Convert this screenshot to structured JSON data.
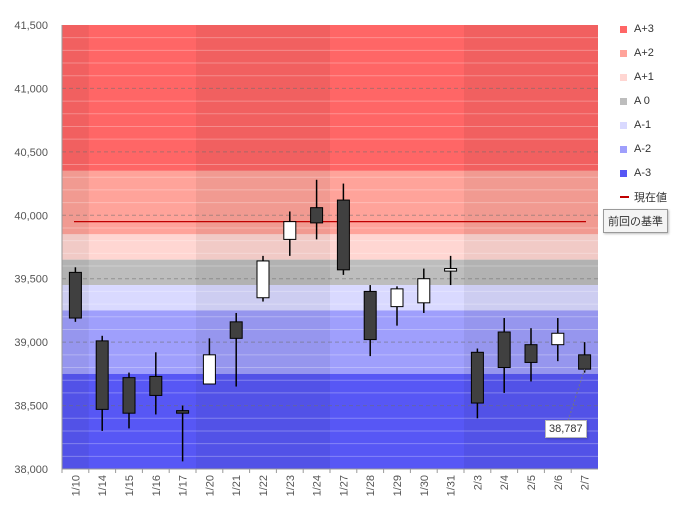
{
  "chart_data": {
    "type": "candlestick",
    "ylim": [
      38000,
      41500
    ],
    "y_ticks": [
      "38,000",
      "38,500",
      "39,000",
      "39,500",
      "40,000",
      "40,500",
      "41,000",
      "41,500"
    ],
    "y_tick_values": [
      38000,
      38500,
      39000,
      39500,
      40000,
      40500,
      41000,
      41500
    ],
    "categories": [
      "1/10",
      "1/14",
      "1/15",
      "1/16",
      "1/17",
      "1/20",
      "1/21",
      "1/22",
      "1/23",
      "1/24",
      "1/27",
      "1/28",
      "1/29",
      "1/30",
      "1/31",
      "2/3",
      "2/4",
      "2/5",
      "2/6",
      "2/7"
    ],
    "candles": [
      {
        "date": "1/10",
        "open": 39550,
        "high": 39590,
        "low": 39160,
        "close": 39190
      },
      {
        "date": "1/14",
        "open": 39010,
        "high": 39050,
        "low": 38300,
        "close": 38470
      },
      {
        "date": "1/15",
        "open": 38720,
        "high": 38760,
        "low": 38320,
        "close": 38440
      },
      {
        "date": "1/16",
        "open": 38730,
        "high": 38920,
        "low": 38430,
        "close": 38580
      },
      {
        "date": "1/17",
        "open": 38460,
        "high": 38500,
        "low": 38060,
        "close": 38440
      },
      {
        "date": "1/20",
        "open": 38670,
        "high": 39030,
        "low": 38670,
        "close": 38900
      },
      {
        "date": "1/21",
        "open": 39160,
        "high": 39230,
        "low": 38650,
        "close": 39030
      },
      {
        "date": "1/22",
        "open": 39350,
        "high": 39680,
        "low": 39320,
        "close": 39640
      },
      {
        "date": "1/23",
        "open": 39810,
        "high": 40030,
        "low": 39680,
        "close": 39950
      },
      {
        "date": "1/24",
        "open": 40060,
        "high": 40280,
        "low": 39810,
        "close": 39940
      },
      {
        "date": "1/27",
        "open": 40120,
        "high": 40250,
        "low": 39530,
        "close": 39570
      },
      {
        "date": "1/28",
        "open": 39400,
        "high": 39450,
        "low": 38890,
        "close": 39020
      },
      {
        "date": "1/29",
        "open": 39280,
        "high": 39440,
        "low": 39130,
        "close": 39420
      },
      {
        "date": "1/30",
        "open": 39310,
        "high": 39580,
        "low": 39230,
        "close": 39500
      },
      {
        "date": "1/31",
        "open": 39560,
        "high": 39680,
        "low": 39450,
        "close": 39580
      },
      {
        "date": "2/3",
        "open": 38920,
        "high": 38950,
        "low": 38400,
        "close": 38520
      },
      {
        "date": "2/4",
        "open": 39080,
        "high": 39190,
        "low": 38600,
        "close": 38800
      },
      {
        "date": "2/5",
        "open": 38980,
        "high": 39110,
        "low": 38690,
        "close": 38840
      },
      {
        "date": "2/6",
        "open": 38980,
        "high": 39190,
        "low": 38850,
        "close": 39070
      },
      {
        "date": "2/7",
        "open": 38900,
        "high": 39000,
        "low": 38760,
        "close": 38787
      }
    ],
    "reference_value": 39950,
    "current_value": "38,787",
    "reference_label": "前回の基準",
    "bands": [
      {
        "name": "A+3",
        "from": 40350,
        "to": 41500,
        "color": "#ff6666"
      },
      {
        "name": "A+2",
        "from": 39850,
        "to": 40350,
        "color": "#ffa39a"
      },
      {
        "name": "A+1",
        "from": 39650,
        "to": 39850,
        "color": "#ffd6d2"
      },
      {
        "name": "A 0",
        "from": 39450,
        "to": 39650,
        "color": "#bdbdbd"
      },
      {
        "name": "A-1",
        "from": 39250,
        "to": 39450,
        "color": "#d9d9ff"
      },
      {
        "name": "A-2",
        "from": 38750,
        "to": 39250,
        "color": "#9f9ffc"
      },
      {
        "name": "A-3",
        "from": 38000,
        "to": 38750,
        "color": "#5757f5"
      }
    ],
    "legend": [
      {
        "label": "A+3",
        "color": "#ff6666"
      },
      {
        "label": "A+2",
        "color": "#ffa39a"
      },
      {
        "label": "A+1",
        "color": "#ffd6d2"
      },
      {
        "label": "A 0",
        "color": "#bdbdbd"
      },
      {
        "label": "A-1",
        "color": "#d9d9ff"
      },
      {
        "label": "A-2",
        "color": "#9f9ffc"
      },
      {
        "label": "A-3",
        "color": "#5757f5"
      },
      {
        "label": "現在値",
        "color": "#c00000"
      }
    ],
    "colors": {
      "bull_body": "#ffffff",
      "bear_body": "#404040",
      "wick": "#000000",
      "reference_line": "#c00000",
      "grid": "#888888"
    },
    "grid": true,
    "legend_position": "right"
  }
}
